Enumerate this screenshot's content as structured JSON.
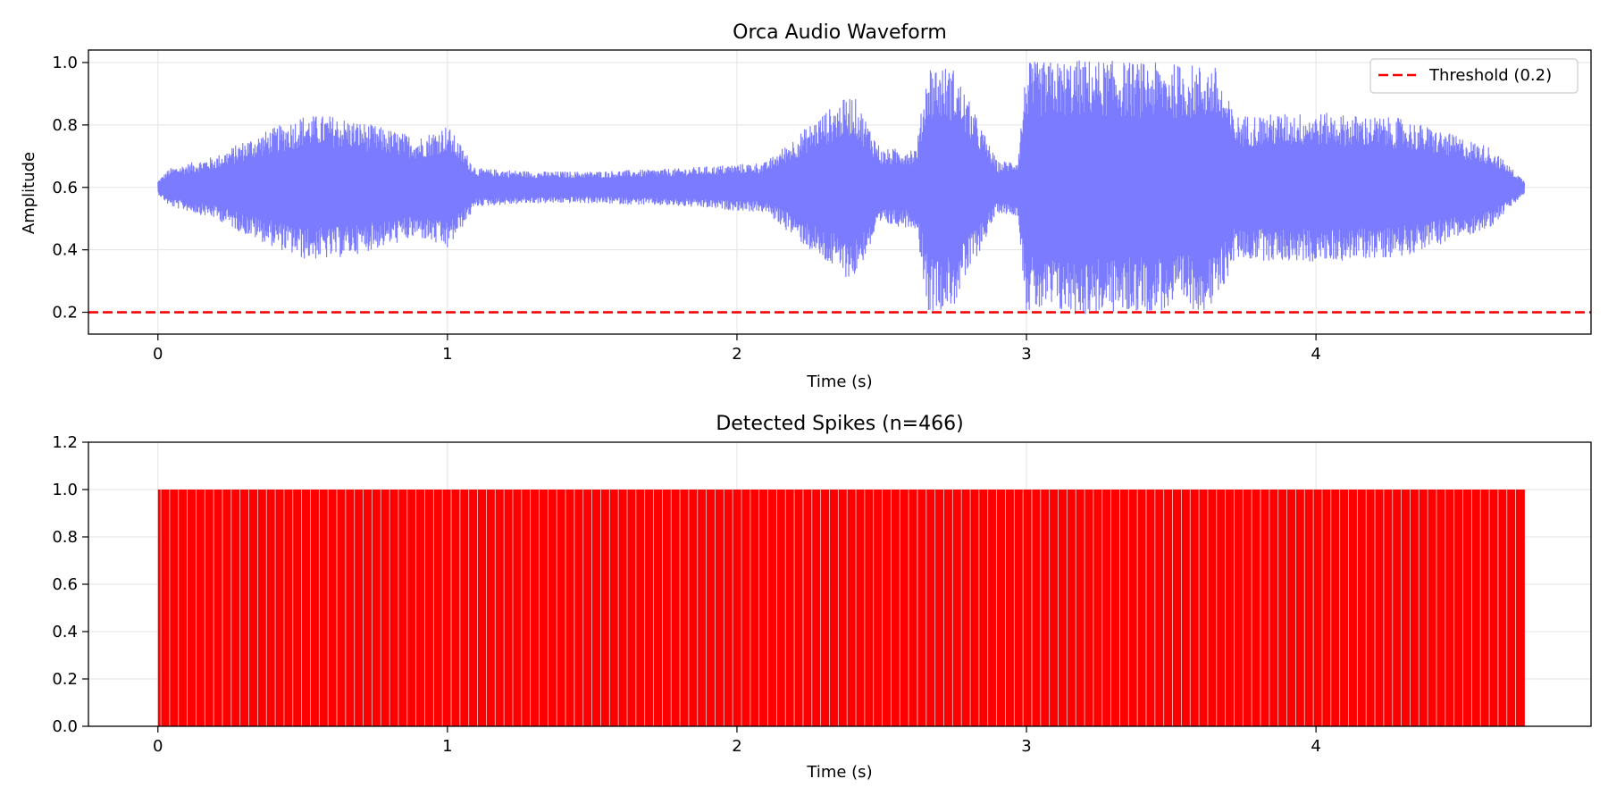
{
  "chart_data": [
    {
      "type": "line",
      "title": "Orca Audio Waveform",
      "xlabel": "Time (s)",
      "ylabel": "Amplitude",
      "xlim": [
        -0.24,
        4.95
      ],
      "ylim": [
        0.13,
        1.04
      ],
      "xticks": [
        0,
        1,
        2,
        3,
        4
      ],
      "xtick_labels": [
        "0",
        "1",
        "2",
        "3",
        "4"
      ],
      "yticks": [
        0.2,
        0.4,
        0.6,
        0.8,
        1.0
      ],
      "ytick_labels": [
        "0.2",
        "0.4",
        "0.6",
        "0.8",
        "1.0"
      ],
      "grid": true,
      "legend": {
        "position": "top-right",
        "entries": [
          "Threshold (0.2)"
        ]
      },
      "series": [
        {
          "kind": "waveform",
          "color": "#7b7bff",
          "center": 0.6,
          "duration": 4.72,
          "envelope": [
            [
              0.0,
              0.02
            ],
            [
              0.04,
              0.06
            ],
            [
              0.2,
              0.1
            ],
            [
              0.3,
              0.15
            ],
            [
              0.5,
              0.23
            ],
            [
              0.6,
              0.23
            ],
            [
              0.7,
              0.21
            ],
            [
              0.9,
              0.16
            ],
            [
              1.0,
              0.2
            ],
            [
              1.1,
              0.06
            ],
            [
              1.3,
              0.05
            ],
            [
              1.5,
              0.05
            ],
            [
              1.8,
              0.06
            ],
            [
              2.1,
              0.08
            ],
            [
              2.3,
              0.24
            ],
            [
              2.4,
              0.3
            ],
            [
              2.5,
              0.12
            ],
            [
              2.62,
              0.13
            ],
            [
              2.66,
              0.4
            ],
            [
              2.75,
              0.38
            ],
            [
              2.9,
              0.08
            ],
            [
              2.97,
              0.09
            ],
            [
              3.0,
              0.4
            ],
            [
              3.2,
              0.41
            ],
            [
              3.4,
              0.4
            ],
            [
              3.65,
              0.39
            ],
            [
              3.72,
              0.23
            ],
            [
              4.0,
              0.24
            ],
            [
              4.3,
              0.22
            ],
            [
              4.6,
              0.13
            ],
            [
              4.72,
              0.02
            ]
          ]
        },
        {
          "name": "Threshold (0.2)",
          "kind": "hline",
          "y": 0.2,
          "color": "#ff0000",
          "dash": "dashed"
        }
      ]
    },
    {
      "type": "bar",
      "title": "Detected Spikes (n=466)",
      "xlabel": "Time (s)",
      "ylabel": "",
      "xlim": [
        -0.24,
        4.95
      ],
      "ylim": [
        0.0,
        1.2
      ],
      "xticks": [
        0,
        1,
        2,
        3,
        4
      ],
      "xtick_labels": [
        "0",
        "1",
        "2",
        "3",
        "4"
      ],
      "yticks": [
        0.0,
        0.2,
        0.4,
        0.6,
        0.8,
        1.0,
        1.2
      ],
      "ytick_labels": [
        "0.0",
        "0.2",
        "0.4",
        "0.6",
        "0.8",
        "1.0",
        "1.2"
      ],
      "grid": true,
      "spike_count": 466,
      "spike_start": 0.0,
      "spike_end": 4.72,
      "spike_height": 1.0,
      "color": "#ff0000"
    }
  ]
}
